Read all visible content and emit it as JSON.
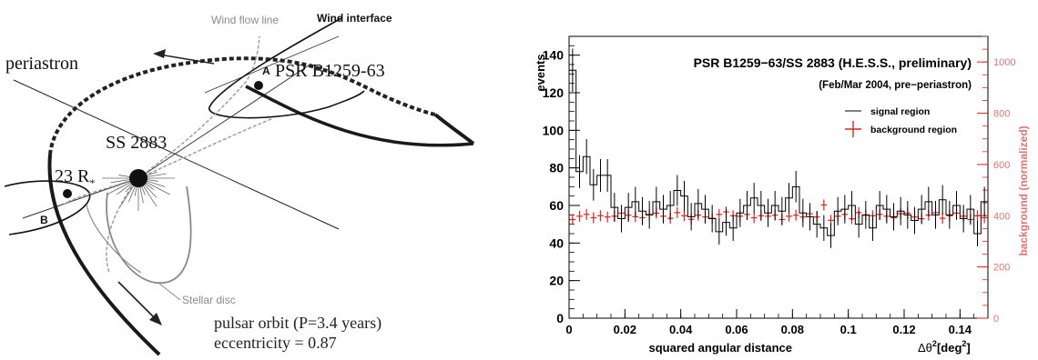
{
  "diagram": {
    "labels": {
      "wind_flow_line": "Wind flow line",
      "wind_interface": "Wind interface",
      "periastron": "periastron",
      "point_a": "A",
      "pulsar": "PSR B1259-63",
      "star": "SS 2883",
      "distance": "23 R",
      "distance_sub": "*",
      "point_b": "B",
      "stellar_disc": "Stellar disc",
      "orbit": "pulsar orbit (P=3.4 years)",
      "eccentricity": "eccentricity = 0.87"
    }
  },
  "chart_data": {
    "type": "histogram",
    "title": "PSR B1259−63/SS 2883 (H.E.S.S., preliminary)",
    "subtitle": "(Feb/Mar 2004, pre−periastron)",
    "xlabel": "squared angular distance",
    "xunit_label": "Δθ",
    "xunit_sup": "2",
    "xunit_rest": "[deg",
    "xunit_sup2": "2",
    "xunit_close": "]",
    "ylabel": "events",
    "y2label": "background (normalized)",
    "xlim": [
      0,
      0.15
    ],
    "ylim": [
      0,
      150
    ],
    "y2lim": [
      0,
      1100
    ],
    "x_ticks": [
      0,
      0.02,
      0.04,
      0.06,
      0.08,
      0.1,
      0.12,
      0.14
    ],
    "x_tick_labels": [
      "0",
      "0.02",
      "0.04",
      "0.06",
      "0.08",
      "0.1",
      "0.12",
      "0.14"
    ],
    "y_ticks": [
      0,
      20,
      40,
      60,
      80,
      100,
      120,
      140
    ],
    "y_tick_labels": [
      "0",
      "20",
      "40",
      "60",
      "80",
      "100",
      "120",
      "140"
    ],
    "y2_ticks": [
      0,
      200,
      400,
      600,
      800,
      1000
    ],
    "y2_tick_labels": [
      "0",
      "200",
      "400",
      "600",
      "800",
      "1000"
    ],
    "legend_position": "top-right",
    "bin_width": 0.0025,
    "series": [
      {
        "name": "signal region",
        "color": "#000000",
        "style": "step-with-errors",
        "values": [
          132,
          78,
          86,
          71,
          76,
          76,
          59,
          53,
          59,
          62,
          57,
          55,
          62,
          58,
          60,
          68,
          65,
          54,
          61,
          58,
          53,
          46,
          51,
          48,
          56,
          60,
          64,
          60,
          56,
          60,
          57,
          64,
          70,
          56,
          54,
          50,
          48,
          44,
          57,
          58,
          60,
          50,
          55,
          48,
          60,
          58,
          54,
          57,
          55,
          52,
          58,
          62,
          55,
          63,
          55,
          60,
          53,
          58,
          45,
          62
        ],
        "errors": [
          11.5,
          8.8,
          9.3,
          8.4,
          8.7,
          8.7,
          7.7,
          7.3,
          7.7,
          7.9,
          7.5,
          7.4,
          7.9,
          7.6,
          7.7,
          8.2,
          8.1,
          7.3,
          7.8,
          7.6,
          7.3,
          6.8,
          7.1,
          6.9,
          7.5,
          7.7,
          8,
          7.7,
          7.5,
          7.7,
          7.5,
          8,
          8.4,
          7.5,
          7.3,
          7.1,
          6.9,
          6.6,
          7.5,
          7.6,
          7.7,
          7.1,
          7.4,
          6.9,
          7.7,
          7.6,
          7.3,
          7.5,
          7.4,
          7.2,
          7.6,
          7.9,
          7.4,
          7.9,
          7.4,
          7.7,
          7.3,
          7.6,
          6.7,
          7.9
        ]
      },
      {
        "name": "background region",
        "color": "#e3211c",
        "style": "cross",
        "axis": "right",
        "values": [
          385,
          398,
          405,
          392,
          400,
          395,
          398,
          410,
          402,
          396,
          392,
          405,
          410,
          398,
          390,
          412,
          400,
          386,
          402,
          395,
          390,
          405,
          415,
          400,
          398,
          405,
          392,
          400,
          398,
          402,
          385,
          398,
          402,
          395,
          408,
          395,
          442,
          382,
          398,
          405,
          388,
          412,
          402,
          400,
          405,
          398,
          392,
          408,
          410,
          395,
          388,
          402,
          412,
          390,
          400,
          410,
          398,
          385,
          400,
          392
        ]
      }
    ]
  }
}
